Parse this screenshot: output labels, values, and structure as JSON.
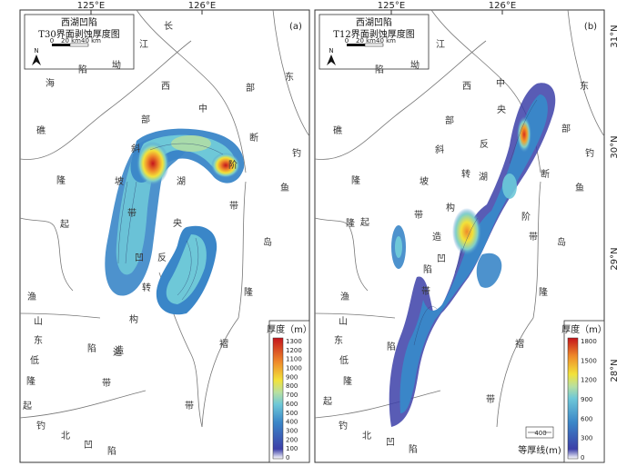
{
  "panels": [
    {
      "id": "a",
      "tag": "(a)",
      "title_line1": "西湖凹陷",
      "title_line2": "T30界面剥蚀厚度图",
      "scale_labels": [
        "0",
        "20 km",
        "40 km"
      ],
      "lon_ticks": [
        "125°E",
        "126°E"
      ],
      "legend_title": "厚度（m）",
      "legend_values": [
        "1300",
        "1200",
        "1100",
        "1000",
        "900",
        "800",
        "700",
        "600",
        "500",
        "400",
        "300",
        "200",
        "100",
        "0"
      ],
      "places": [
        "长",
        "江",
        "坳",
        "陷",
        "海",
        "礁",
        "隆",
        "起",
        "西",
        "部",
        "斜",
        "坡",
        "带",
        "湖",
        "中",
        "央",
        "凹",
        "反",
        "转",
        "构",
        "造",
        "东",
        "部",
        "断",
        "阶",
        "带",
        "钓",
        "鱼",
        "岛",
        "隆",
        "褶",
        "带",
        "渔",
        "山",
        "东",
        "低",
        "隆",
        "起",
        "陷",
        "造",
        "带",
        "钓",
        "北",
        "凹",
        "陷",
        "中"
      ]
    },
    {
      "id": "b",
      "tag": "(b)",
      "title_line1": "西湖凹陷",
      "title_line2": "T12界面剥蚀厚度图",
      "scale_labels": [
        "0",
        "20 km",
        "40 km"
      ],
      "lon_ticks": [
        "125°E",
        "126°E"
      ],
      "lat_ticks": [
        "31°N",
        "30°N",
        "29°N",
        "28°N"
      ],
      "legend_title": "厚度（m）",
      "legend_values": [
        "1800",
        "1500",
        "1200",
        "900",
        "600",
        "300",
        "0"
      ],
      "contour_key": "400",
      "contour_key_label": "等厚线(m)",
      "places": [
        "江",
        "坳",
        "陷",
        "礁",
        "隆",
        "起",
        "中",
        "央",
        "反",
        "转",
        "湖",
        "构",
        "造",
        "凹",
        "带",
        "陷",
        "西",
        "部",
        "斜",
        "坡",
        "带",
        "东",
        "部",
        "断",
        "阶",
        "带",
        "钓",
        "鱼",
        "岛",
        "隆",
        "褶",
        "带",
        "渔",
        "山",
        "东",
        "低",
        "隆",
        "起",
        "陷",
        "钓",
        "北",
        "凹",
        "陷",
        "隆"
      ]
    }
  ],
  "north_label": "N",
  "colors": {
    "low": "#2b3f9e",
    "mid": "#33b4d8",
    "yellow": "#f2e23a",
    "orange": "#ef8a2a",
    "high": "#c4141c"
  }
}
